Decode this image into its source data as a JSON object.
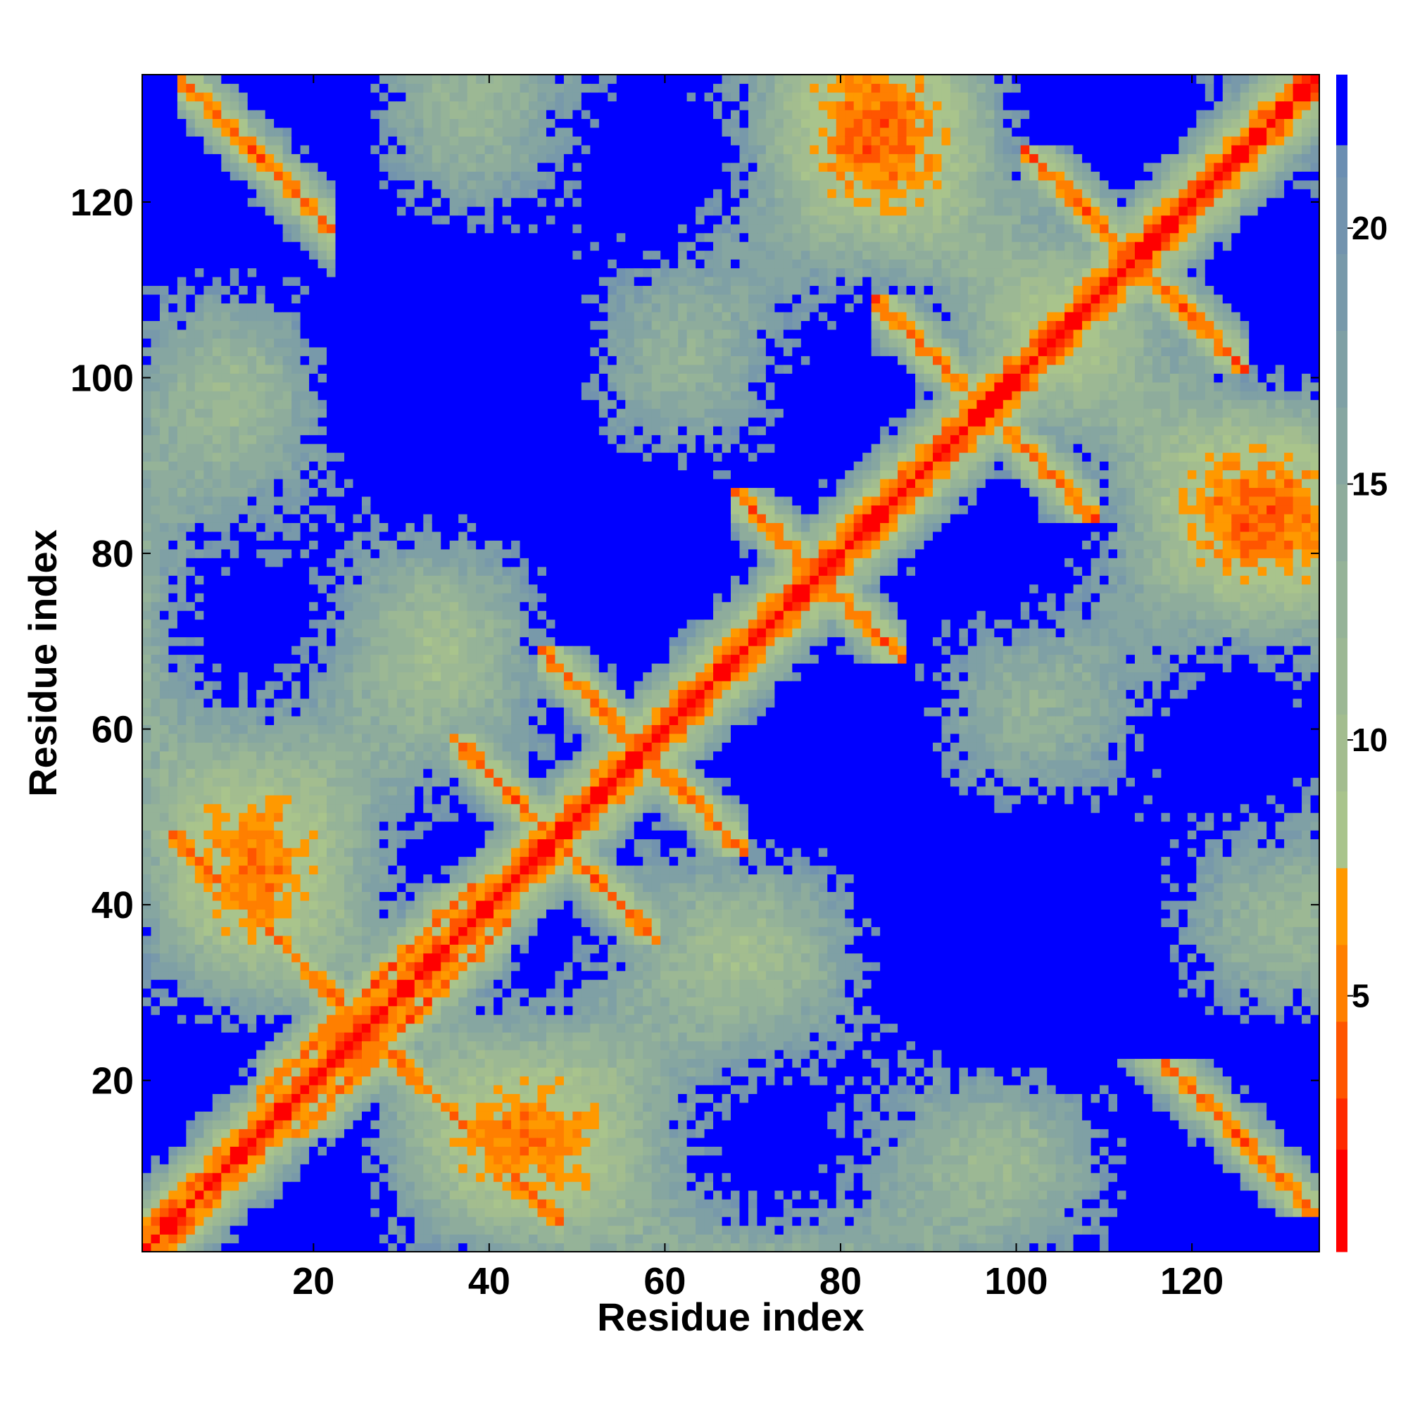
{
  "chart_data": {
    "type": "heatmap",
    "title": "",
    "xlabel": "Residue index",
    "ylabel": "Residue index",
    "xlim": [
      1,
      134
    ],
    "ylim": [
      1,
      134
    ],
    "n_residues": 134,
    "x_ticks": [
      20,
      40,
      60,
      80,
      100,
      120
    ],
    "y_ticks": [
      20,
      40,
      60,
      80,
      100,
      120
    ],
    "colorbar": {
      "range": [
        0,
        23
      ],
      "tick_values": [
        5,
        10,
        15,
        20
      ],
      "tick_labels": [
        "5",
        "10",
        "15",
        "20"
      ],
      "bins": [
        {
          "max": 2,
          "color": "#ff0000"
        },
        {
          "max": 3,
          "color": "#ff2a00"
        },
        {
          "max": 4.5,
          "color": "#ff5500"
        },
        {
          "max": 6,
          "color": "#ff7f00"
        },
        {
          "max": 7.5,
          "color": "#ff9900"
        },
        {
          "max": 9,
          "color": "#a9c48c"
        },
        {
          "max": 10.5,
          "color": "#a3bd8f"
        },
        {
          "max": 12,
          "color": "#9cb894"
        },
        {
          "max": 13.5,
          "color": "#95b398"
        },
        {
          "max": 15,
          "color": "#8eac9c"
        },
        {
          "max": 16.5,
          "color": "#86a6a1"
        },
        {
          "max": 18,
          "color": "#7fa0a5"
        },
        {
          "max": 19.5,
          "color": "#7899aa"
        },
        {
          "max": 21,
          "color": "#7293ae"
        },
        {
          "max": 23,
          "color": "#6b8eb2"
        },
        {
          "max": 999,
          "color": "#0000ff"
        }
      ]
    },
    "structure": {
      "diagonal_contact": "distance rises from 0 at the diagonal",
      "contact_bands": [
        {
          "kind": "anti",
          "sum": 52,
          "from": 6,
          "to": 22
        },
        {
          "kind": "anti",
          "sum": 95,
          "from": 38,
          "to": 48
        },
        {
          "kind": "anti",
          "sum": 115,
          "from": 48,
          "to": 60
        },
        {
          "kind": "anti",
          "sum": 155,
          "from": 70,
          "to": 84
        },
        {
          "kind": "anti",
          "sum": 193,
          "from": 86,
          "to": 100
        },
        {
          "kind": "anti",
          "sum": 227,
          "from": 103,
          "to": 120
        },
        {
          "kind": "anti",
          "sum": 139,
          "from": 7,
          "to": 18
        },
        {
          "kind": "parallel",
          "offset": 4,
          "from": 14,
          "to": 38
        }
      ]
    }
  }
}
